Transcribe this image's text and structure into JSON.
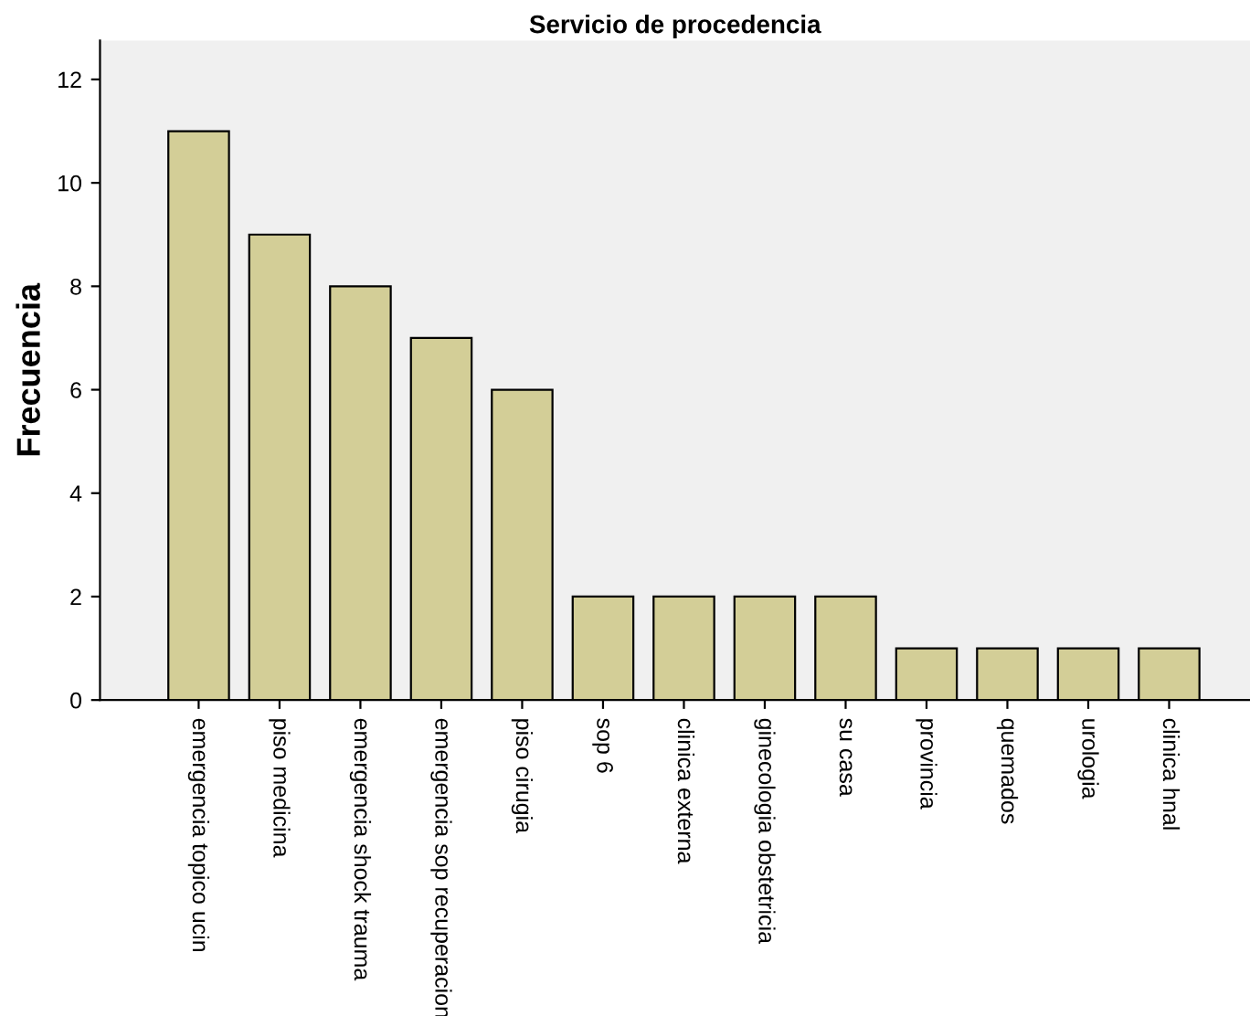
{
  "chart_data": {
    "type": "bar",
    "title": "Servicio de procedencia",
    "ylabel": "Frecuencia",
    "categories": [
      "emergencia topico ucin",
      "piso medicina",
      "emergencia shock trauma",
      "emergencia sop recuperacion",
      "piso cirugia",
      "sop 6",
      "clinica externa",
      "ginecologia obstetricia",
      "su casa",
      "provincia",
      "quemados",
      "urologia",
      "clinica hnal"
    ],
    "values": [
      11,
      9,
      8,
      7,
      6,
      2,
      2,
      2,
      2,
      1,
      1,
      1,
      1
    ],
    "color": "#d3ce97",
    "ylim": [
      0,
      12.75
    ],
    "yticks": [
      0,
      2,
      4,
      6,
      8,
      10,
      12
    ],
    "grid": false
  }
}
